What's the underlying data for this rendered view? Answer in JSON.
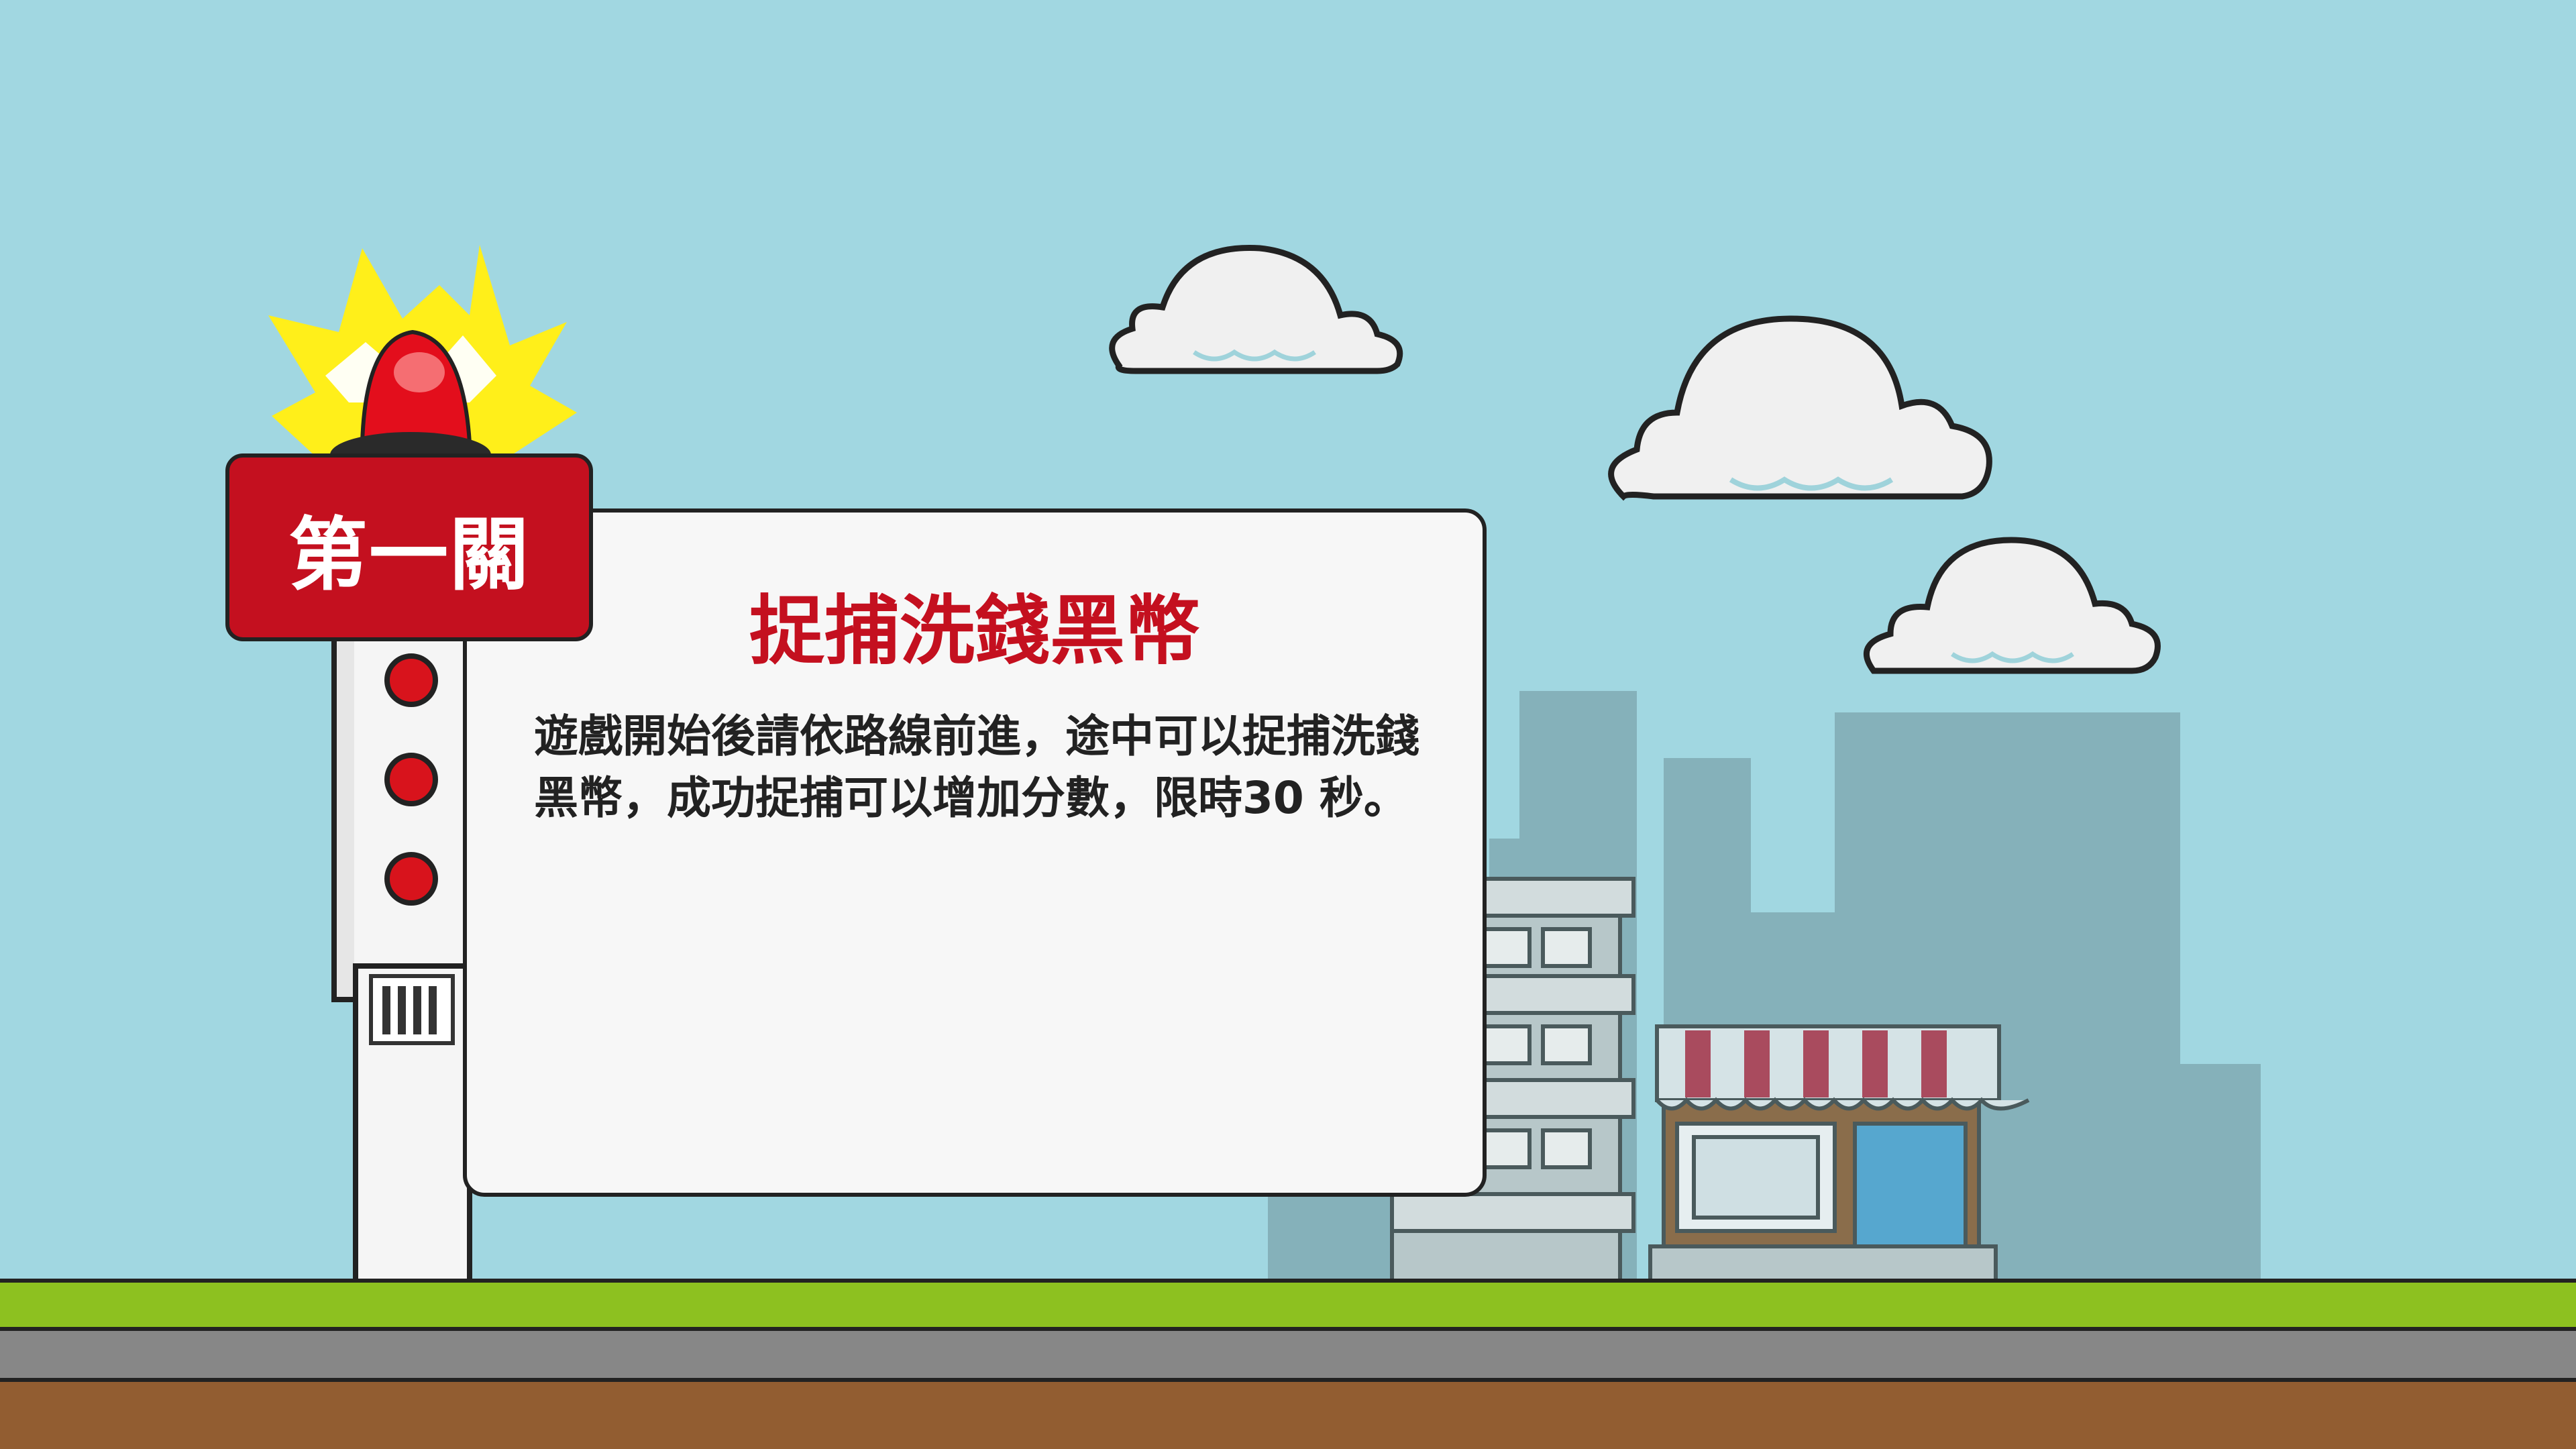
{
  "level": {
    "sign_label": "第一關"
  },
  "mission": {
    "title": "捉捕洗錢黑幣",
    "description": "遊戲開始後請依路線前進，途中可以捉捕洗錢黑幣，成功捉捕可以增加分數，限時30 秒。"
  },
  "colors": {
    "sky": "#a1d7e1",
    "grass": "#8dc120",
    "road": "#878787",
    "soil": "#925d31",
    "accent_red": "#c4101f",
    "siren_glow": "#ffef1a"
  },
  "icons": [
    "siren-icon",
    "cloud-icon",
    "building-icon",
    "shop-icon",
    "signal-light-icon"
  ]
}
